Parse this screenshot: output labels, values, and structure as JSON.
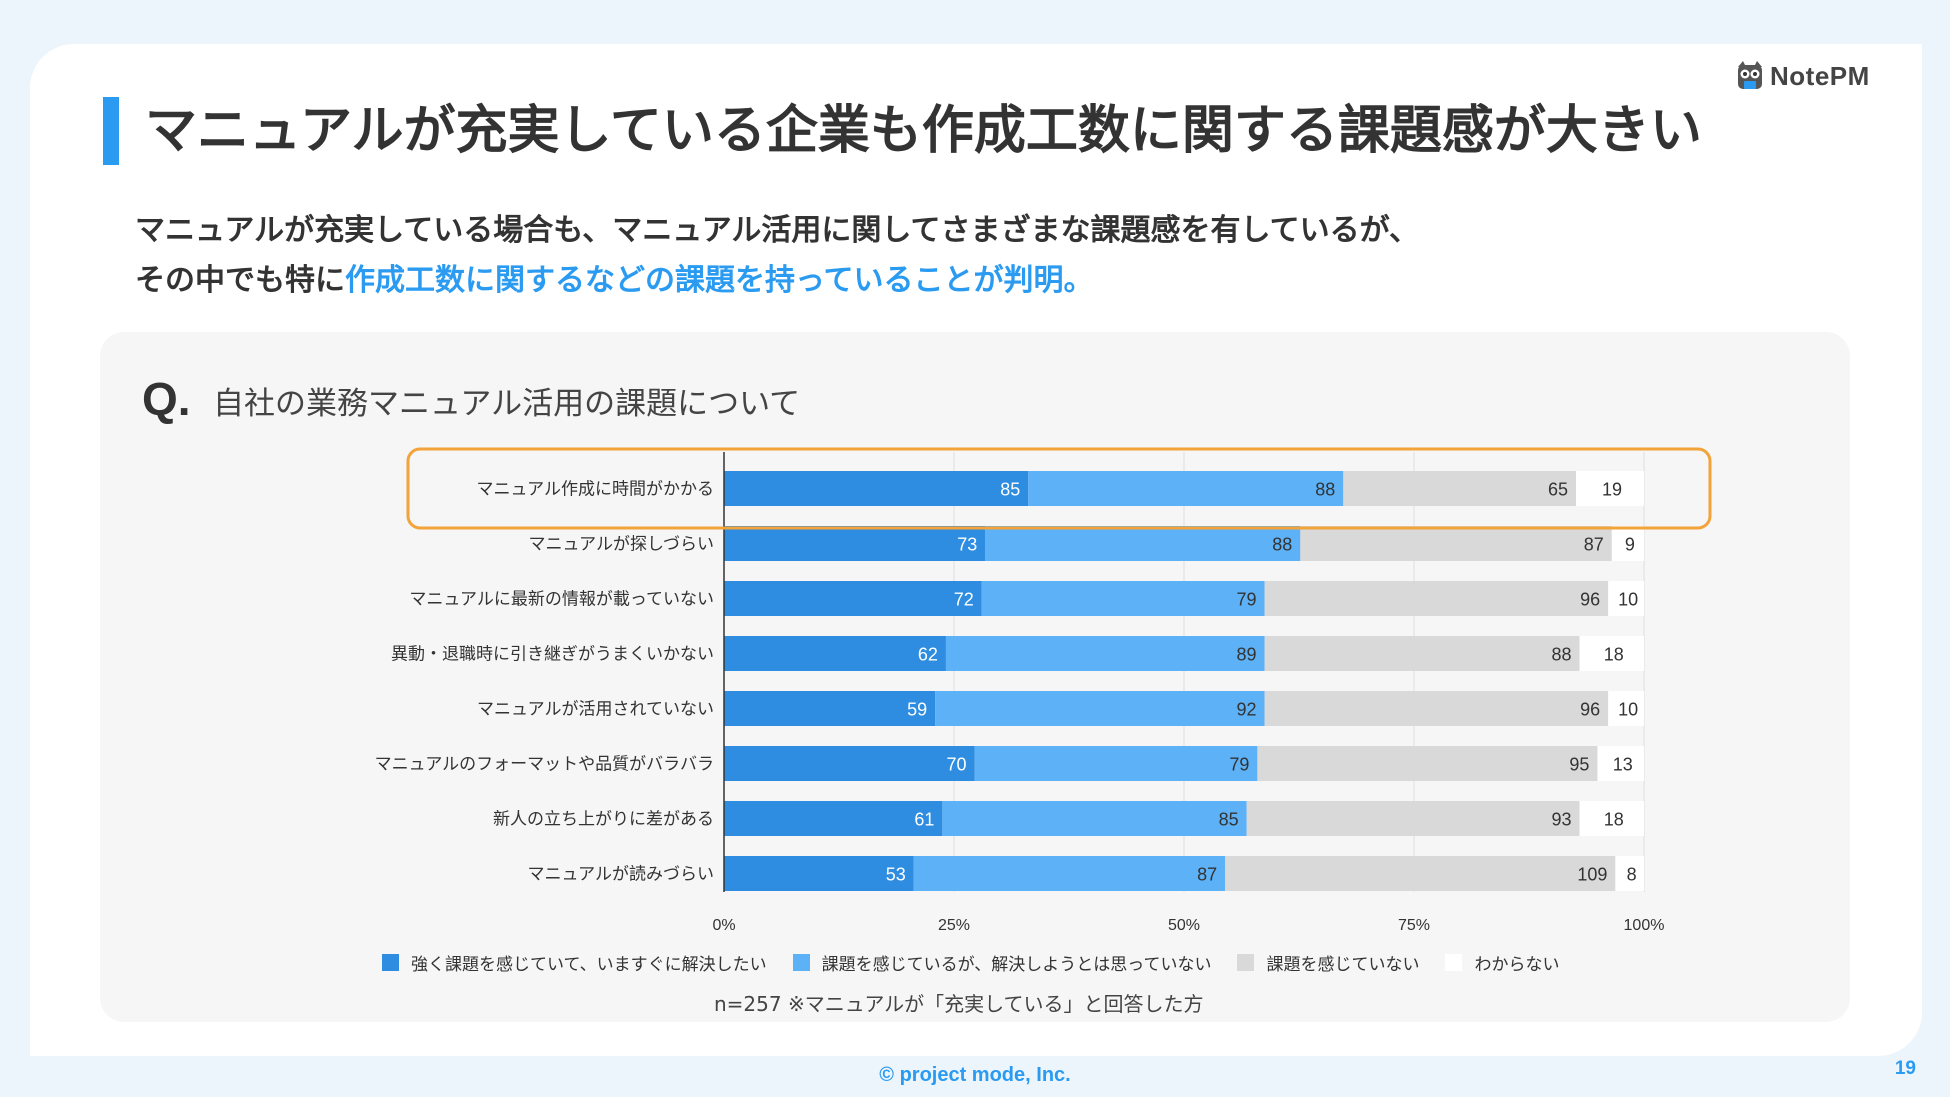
{
  "brand": {
    "logo_text": "NotePM"
  },
  "title": "マニュアルが充実している企業も作成工数に関する課題感が大きい",
  "lead": {
    "line1": "マニュアルが充実している場合も、マニュアル活用に関してさまざまな課題感を有しているが、",
    "line2_prefix": "その中でも特に",
    "line2_highlight": "作成工数に関するなどの課題を持っていることが判明。"
  },
  "question": {
    "mark": "Q.",
    "text": "自社の業務マニュアル活用の課題について"
  },
  "chart_data": {
    "type": "bar",
    "orientation": "horizontal",
    "stacked": "percent",
    "categories": [
      "マニュアル作成に時間がかかる",
      "マニュアルが探しづらい",
      "マニュアルに最新の情報が載っていない",
      "異動・退職時に引き継ぎがうまくいかない",
      "マニュアルが活用されていない",
      "マニュアルのフォーマットや品質がバラバラ",
      "新人の立ち上がりに差がある",
      "マニュアルが読みづらい"
    ],
    "series": [
      {
        "name": "強く課題を感じていて、いますぐに解決したい",
        "color": "#2e8de0",
        "values": [
          85,
          73,
          72,
          62,
          59,
          70,
          61,
          53
        ]
      },
      {
        "name": "課題を感じているが、解決しようとは思っていない",
        "color": "#5cb1f7",
        "values": [
          88,
          88,
          79,
          89,
          92,
          79,
          85,
          87
        ]
      },
      {
        "name": "課題を感じていない",
        "color": "#d9d9d9",
        "values": [
          65,
          87,
          96,
          88,
          96,
          95,
          93,
          109
        ]
      },
      {
        "name": "わからない",
        "color": "#ffffff",
        "values": [
          19,
          9,
          10,
          18,
          10,
          13,
          18,
          8
        ]
      }
    ],
    "xticks": [
      "0%",
      "25%",
      "50%",
      "75%",
      "100%"
    ],
    "xlim": [
      0,
      100
    ],
    "highlight_category": "マニュアル作成に時間がかかる",
    "highlight_color": "#f2a33a",
    "legend_position": "bottom"
  },
  "note": "n=257 ※マニュアルが「充実している」と回答した方",
  "footer": "© project mode, Inc.",
  "page_number": "19"
}
